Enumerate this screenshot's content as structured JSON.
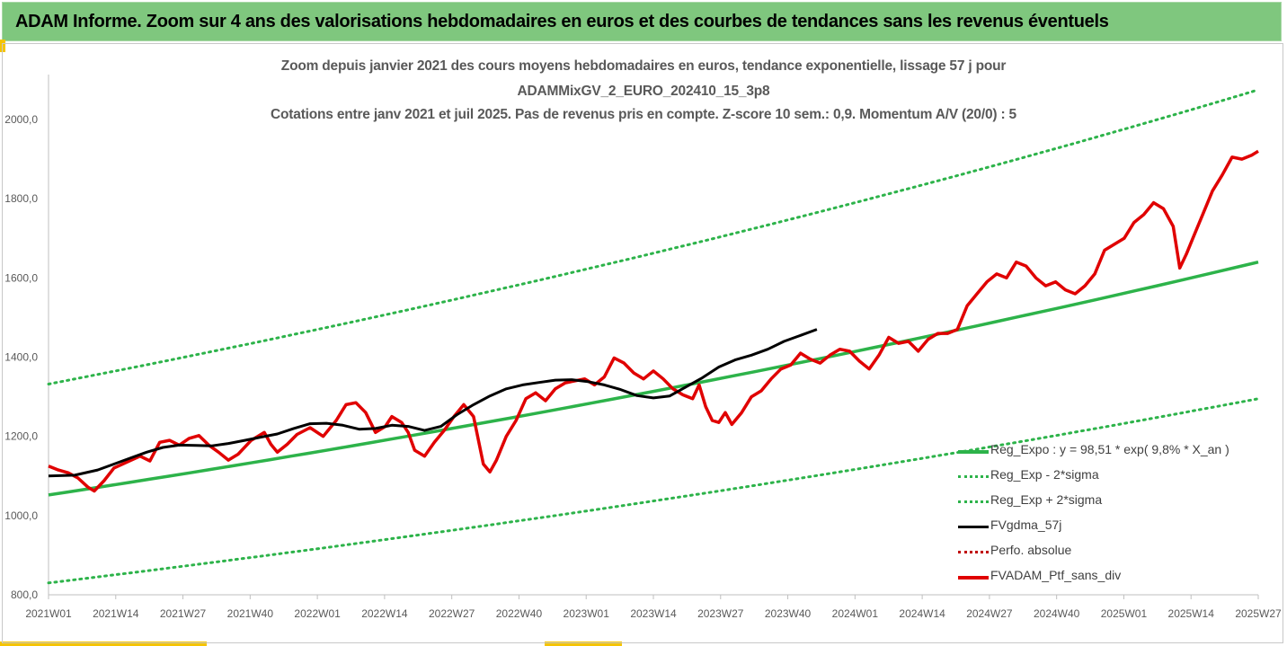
{
  "banner": {
    "title": "ADAM Informe. Zoom sur 4 ans des valorisations hebdomadaires en euros et des courbes de tendances sans les revenus éventuels"
  },
  "chart_data": {
    "type": "line",
    "title": "Zoom depuis janvier 2021 des cours moyens hebdomadaires  en euros, tendance exponentielle, lissage 57 j pour",
    "subtitle": "ADAMMixGV_2_EURO_202410_15_3p8",
    "subtitle2": "Cotations entre janv 2021 et juil 2025. Pas de revenus pris en compte. Z-score 10 sem.: 0,9. Momentum A/V (20/0) : 5",
    "xlabel": "",
    "ylabel": "",
    "ylim": [
      800,
      2100
    ],
    "y_ticks": [
      "800,0",
      "1000,0",
      "1200,0",
      "1400,0",
      "1600,0",
      "1800,0",
      "2000,0"
    ],
    "x_ticks": [
      "2021W01",
      "2021W14",
      "2021W27",
      "2021W40",
      "2022W01",
      "2022W14",
      "2022W27",
      "2022W40",
      "2023W01",
      "2023W14",
      "2023W27",
      "2023W40",
      "2024W01",
      "2024W14",
      "2024W27",
      "2024W40",
      "2025W01",
      "2025W14",
      "2025W27"
    ],
    "grid": "none",
    "legend_position": "bottom-right",
    "week_count": 235,
    "colors": {
      "reg": "#2db34a",
      "reg_sigma": "#2db34a",
      "fvg": "#000000",
      "perf": "#c00000",
      "fvadam": "#e00000"
    },
    "series": [
      {
        "name": "Reg_Expo : y = 98,51 * exp( 9,8% *  X_an )",
        "style": "solid",
        "start": 1052,
        "end": 1640
      },
      {
        "name": "Reg_Exp - 2*sigma",
        "style": "dotted",
        "start": 830,
        "end": 1295
      },
      {
        "name": "Reg_Exp + 2*sigma",
        "style": "dotted",
        "start": 1332,
        "end": 2075
      },
      {
        "name": "FVgdma_57j",
        "style": "solid",
        "points": [
          [
            0,
            1100
          ],
          [
            8,
            1102
          ],
          [
            15,
            1115
          ],
          [
            20,
            1130
          ],
          [
            25,
            1145
          ],
          [
            30,
            1160
          ],
          [
            35,
            1172
          ],
          [
            40,
            1178
          ],
          [
            45,
            1177
          ],
          [
            50,
            1176
          ],
          [
            55,
            1182
          ],
          [
            60,
            1190
          ],
          [
            65,
            1198
          ],
          [
            70,
            1206
          ],
          [
            75,
            1220
          ],
          [
            80,
            1232
          ],
          [
            85,
            1233
          ],
          [
            90,
            1228
          ],
          [
            95,
            1218
          ],
          [
            100,
            1220
          ],
          [
            105,
            1228
          ],
          [
            110,
            1225
          ],
          [
            115,
            1215
          ],
          [
            120,
            1225
          ],
          [
            125,
            1255
          ],
          [
            130,
            1280
          ],
          [
            135,
            1302
          ],
          [
            140,
            1320
          ],
          [
            145,
            1330
          ],
          [
            150,
            1336
          ],
          [
            155,
            1342
          ],
          [
            160,
            1343
          ],
          [
            165,
            1338
          ],
          [
            170,
            1330
          ],
          [
            175,
            1318
          ],
          [
            180,
            1303
          ],
          [
            185,
            1297
          ],
          [
            190,
            1302
          ],
          [
            195,
            1325
          ],
          [
            200,
            1348
          ],
          [
            205,
            1375
          ],
          [
            210,
            1393
          ],
          [
            215,
            1405
          ],
          [
            220,
            1420
          ],
          [
            225,
            1440
          ],
          [
            230,
            1455
          ],
          [
            235,
            1470
          ]
        ]
      },
      {
        "name": "Perfo. absolue",
        "style": "dotted"
      },
      {
        "name": "FVADAM_Ptf_sans_div",
        "style": "solid",
        "points": [
          [
            0,
            1125
          ],
          [
            3,
            1115
          ],
          [
            6,
            1108
          ],
          [
            9,
            1095
          ],
          [
            12,
            1072
          ],
          [
            14,
            1062
          ],
          [
            17,
            1088
          ],
          [
            20,
            1120
          ],
          [
            24,
            1135
          ],
          [
            28,
            1150
          ],
          [
            31,
            1138
          ],
          [
            34,
            1185
          ],
          [
            37,
            1190
          ],
          [
            40,
            1178
          ],
          [
            43,
            1195
          ],
          [
            46,
            1202
          ],
          [
            49,
            1178
          ],
          [
            52,
            1160
          ],
          [
            55,
            1140
          ],
          [
            58,
            1155
          ],
          [
            62,
            1190
          ],
          [
            66,
            1210
          ],
          [
            68,
            1180
          ],
          [
            70,
            1160
          ],
          [
            73,
            1180
          ],
          [
            76,
            1205
          ],
          [
            80,
            1222
          ],
          [
            84,
            1200
          ],
          [
            88,
            1240
          ],
          [
            91,
            1280
          ],
          [
            94,
            1285
          ],
          [
            97,
            1260
          ],
          [
            100,
            1210
          ],
          [
            103,
            1225
          ],
          [
            105,
            1250
          ],
          [
            108,
            1235
          ],
          [
            110,
            1210
          ],
          [
            112,
            1165
          ],
          [
            115,
            1150
          ],
          [
            118,
            1185
          ],
          [
            121,
            1215
          ],
          [
            124,
            1250
          ],
          [
            127,
            1280
          ],
          [
            130,
            1250
          ],
          [
            133,
            1130
          ],
          [
            135,
            1110
          ],
          [
            137,
            1140
          ],
          [
            140,
            1200
          ],
          [
            143,
            1240
          ],
          [
            146,
            1295
          ],
          [
            149,
            1310
          ],
          [
            152,
            1290
          ],
          [
            155,
            1320
          ],
          [
            158,
            1335
          ],
          [
            161,
            1340
          ],
          [
            164,
            1345
          ],
          [
            167,
            1330
          ],
          [
            170,
            1350
          ],
          [
            173,
            1398
          ],
          [
            176,
            1385
          ],
          [
            179,
            1360
          ],
          [
            182,
            1345
          ],
          [
            185,
            1365
          ],
          [
            188,
            1345
          ],
          [
            191,
            1320
          ],
          [
            194,
            1305
          ],
          [
            197,
            1295
          ],
          [
            199,
            1330
          ],
          [
            201,
            1275
          ],
          [
            203,
            1240
          ],
          [
            205,
            1235
          ],
          [
            207,
            1260
          ],
          [
            209,
            1230
          ],
          [
            212,
            1260
          ],
          [
            215,
            1300
          ],
          [
            218,
            1315
          ],
          [
            221,
            1345
          ],
          [
            224,
            1370
          ],
          [
            227,
            1380
          ],
          [
            230,
            1410
          ],
          [
            233,
            1395
          ],
          [
            236,
            1385
          ],
          [
            239,
            1405
          ],
          [
            242,
            1420
          ],
          [
            245,
            1415
          ],
          [
            248,
            1390
          ],
          [
            251,
            1370
          ],
          [
            254,
            1405
          ],
          [
            257,
            1450
          ],
          [
            260,
            1435
          ],
          [
            263,
            1440
          ],
          [
            266,
            1415
          ],
          [
            269,
            1445
          ],
          [
            272,
            1460
          ],
          [
            275,
            1460
          ],
          [
            278,
            1470
          ],
          [
            281,
            1530
          ],
          [
            284,
            1560
          ],
          [
            287,
            1590
          ],
          [
            290,
            1610
          ],
          [
            293,
            1600
          ],
          [
            296,
            1640
          ],
          [
            299,
            1630
          ],
          [
            302,
            1600
          ],
          [
            305,
            1580
          ],
          [
            308,
            1590
          ],
          [
            311,
            1570
          ],
          [
            314,
            1560
          ],
          [
            317,
            1580
          ],
          [
            320,
            1610
          ],
          [
            323,
            1670
          ],
          [
            326,
            1685
          ],
          [
            329,
            1700
          ],
          [
            332,
            1740
          ],
          [
            335,
            1760
          ],
          [
            338,
            1790
          ],
          [
            341,
            1775
          ],
          [
            344,
            1730
          ],
          [
            346,
            1625
          ],
          [
            348,
            1660
          ],
          [
            350,
            1700
          ],
          [
            353,
            1760
          ],
          [
            356,
            1820
          ],
          [
            359,
            1860
          ],
          [
            362,
            1905
          ],
          [
            365,
            1900
          ],
          [
            368,
            1910
          ],
          [
            370,
            1920
          ]
        ]
      }
    ]
  }
}
